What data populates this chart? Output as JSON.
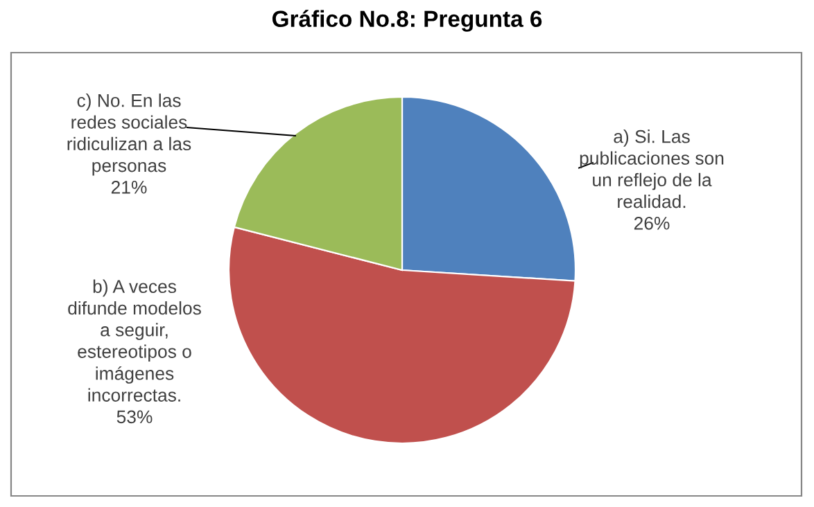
{
  "chart_data": {
    "type": "pie",
    "title": "Gráfico No.8: Pregunta 6",
    "categories": [
      "a) Si. Las\npublicaciones son\nun reflejo de la\nrealidad.",
      "b) A veces\ndifunde modelos\na seguir,\nestereotipos o\nimágenes\nincorrectas.",
      "c) No. En las\nredes sociales\nridiculizan a las\npersonas"
    ],
    "values": [
      26,
      53,
      21
    ],
    "value_labels": [
      "26%",
      "53%",
      "21%"
    ],
    "colors": [
      "#4f81bd",
      "#c0504d",
      "#9bbb59"
    ],
    "legend": false
  }
}
